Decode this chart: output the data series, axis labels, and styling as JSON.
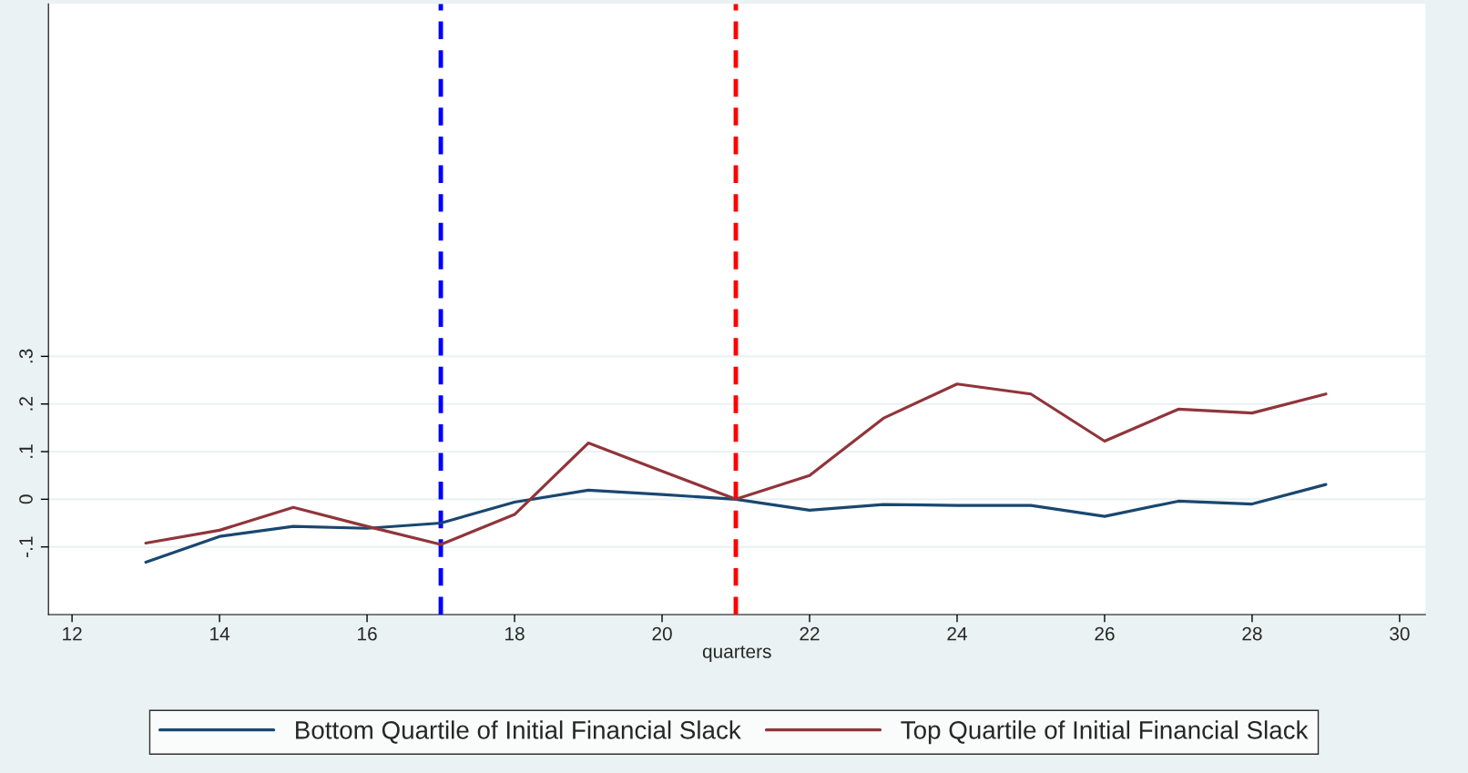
{
  "chart_data": {
    "type": "line",
    "xlabel": "quarters",
    "x": [
      13,
      14,
      15,
      16,
      17,
      18,
      19,
      20,
      21,
      22,
      23,
      24,
      25,
      26,
      27,
      28,
      29
    ],
    "series": [
      {
        "name": "Bottom Quartile of Initial Financial Slack",
        "color": "#1a476f",
        "values": [
          -0.132,
          -0.078,
          -0.057,
          -0.061,
          -0.05,
          -0.006,
          0.019,
          0.01,
          0.0,
          -0.023,
          -0.011,
          -0.013,
          -0.013,
          -0.036,
          -0.004,
          -0.01,
          0.031
        ]
      },
      {
        "name": "Top Quartile of Initial Financial Slack",
        "color": "#90353b",
        "values": [
          -0.092,
          -0.065,
          -0.017,
          -0.057,
          -0.095,
          -0.032,
          0.118,
          0.059,
          0.0,
          0.05,
          0.17,
          0.242,
          0.221,
          0.122,
          0.189,
          0.181,
          0.221
        ]
      }
    ],
    "xlim": [
      11.68,
      30.35
    ],
    "xticks": [
      12,
      14,
      16,
      18,
      20,
      22,
      24,
      26,
      28,
      30
    ],
    "ylim": [
      -0.242,
      1.04
    ],
    "yticks": [
      {
        "value": -0.1,
        "label": "-.1"
      },
      0,
      {
        "value": 0.1,
        "label": ".1"
      },
      {
        "value": 0.2,
        "label": ".2"
      },
      {
        "value": 0.3,
        "label": ".3"
      }
    ],
    "ref_lines": [
      {
        "axis": "x",
        "value": 17,
        "color": "#0000ff",
        "line_style": "dashed"
      },
      {
        "axis": "x",
        "value": 21,
        "color": "#ff0000",
        "line_style": "dashed"
      }
    ],
    "grid": "y",
    "legend": "bottom",
    "marker": "none",
    "line_style": "solid"
  }
}
